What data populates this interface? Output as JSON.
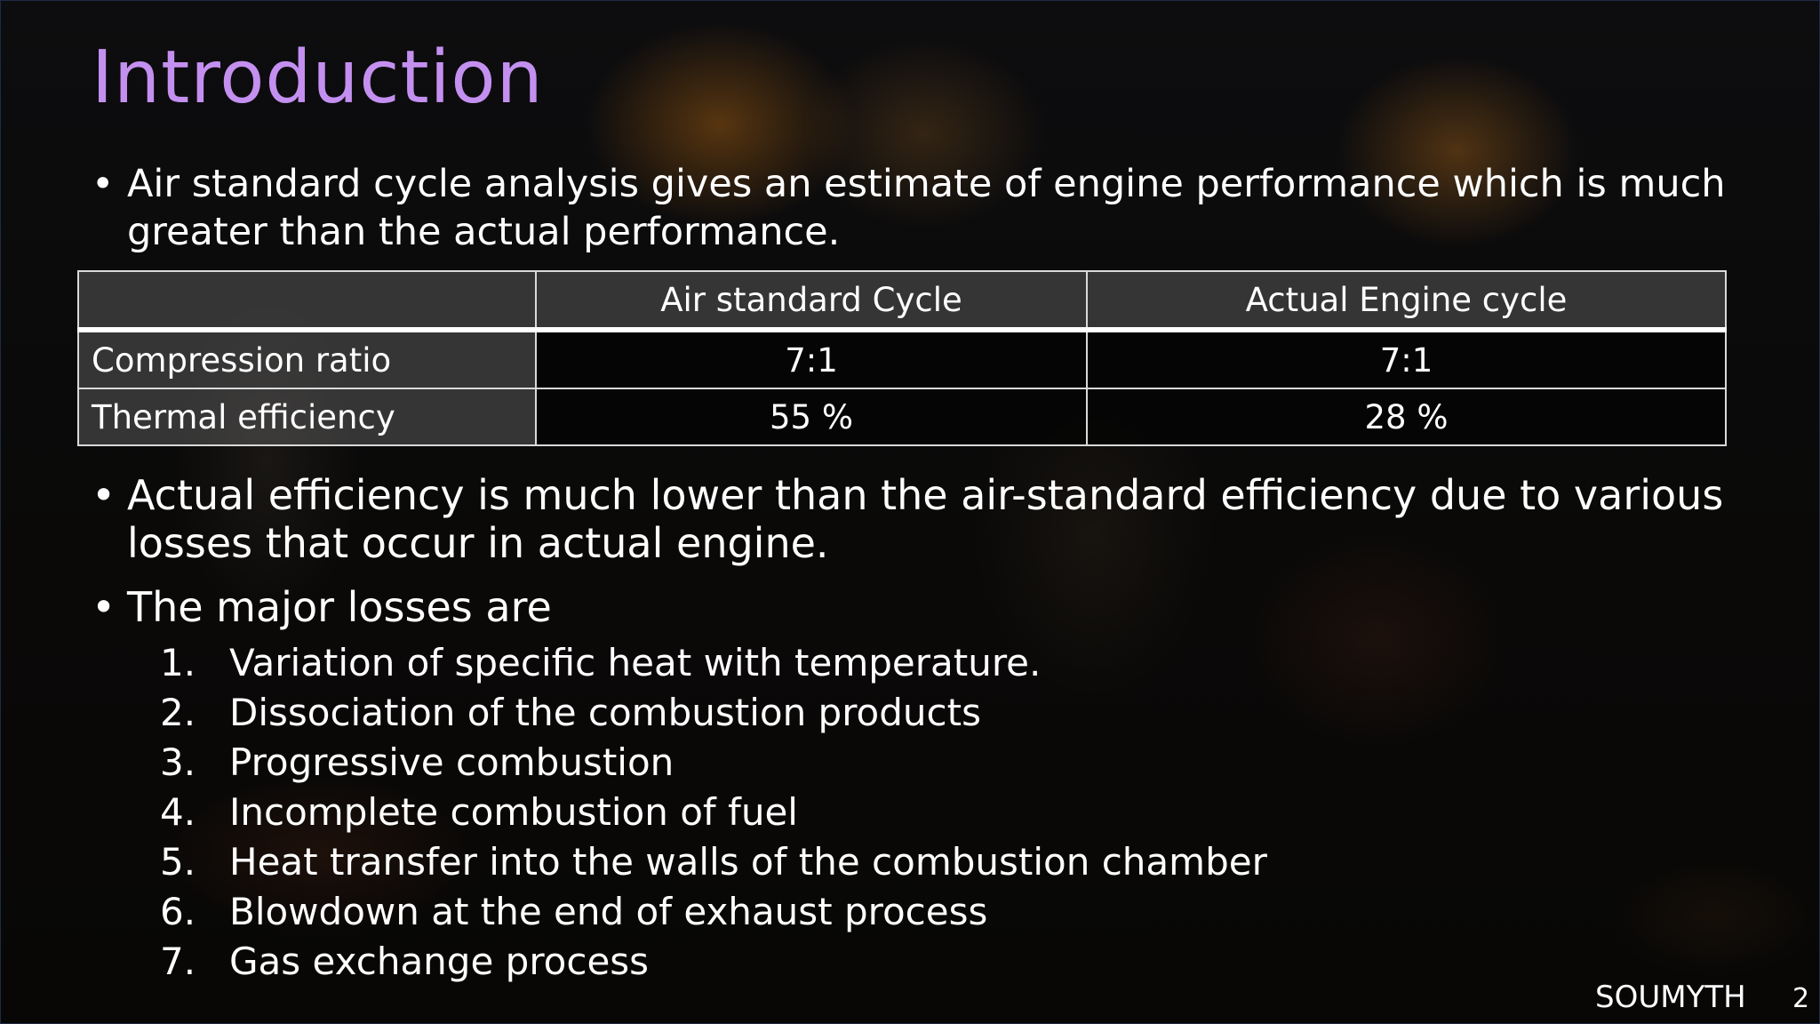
{
  "slide": {
    "title": "Introduction",
    "bullets": {
      "first": "Air standard cycle analysis gives an estimate of engine performance which is much greater than the actual performance.",
      "second": "Actual efficiency is much lower than the air-standard efficiency due to various losses that occur in actual engine.",
      "third": "The major losses are",
      "marker": "•"
    },
    "table": {
      "headers": [
        "",
        "Air standard Cycle",
        "Actual Engine cycle"
      ],
      "rows": [
        [
          "Compression ratio",
          "7:1",
          "7:1"
        ],
        [
          "Thermal efficiency",
          "55 %",
          "28 %"
        ]
      ]
    },
    "losses": [
      {
        "num": "1.",
        "text": "Variation of specific heat with temperature."
      },
      {
        "num": "2.",
        "text": "Dissociation of the combustion products"
      },
      {
        "num": "3.",
        "text": "Progressive combustion"
      },
      {
        "num": "4.",
        "text": "Incomplete combustion of fuel"
      },
      {
        "num": "5.",
        "text": "Heat transfer into the walls of the combustion chamber"
      },
      {
        "num": "6.",
        "text": "Blowdown at the end of exhaust process"
      },
      {
        "num": "7.",
        "text": "Gas exchange process"
      }
    ],
    "footer": {
      "author": "SOUMYTH",
      "page_number": "2"
    },
    "colors": {
      "title": "#c490f0",
      "text": "#ffffff",
      "background": "#0a0908"
    }
  }
}
